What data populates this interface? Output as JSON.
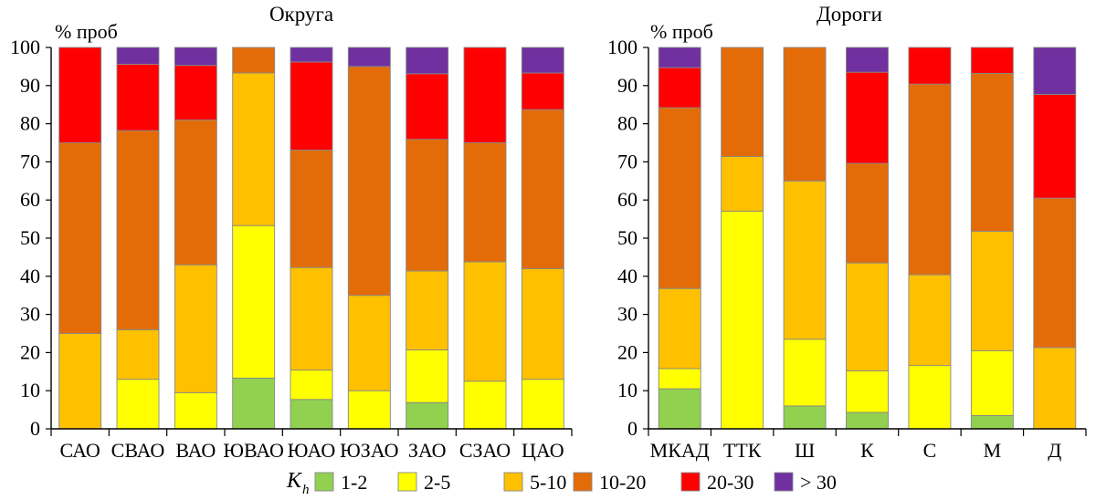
{
  "legend": {
    "symbol": "K",
    "subscript": "h",
    "items": [
      {
        "label": "1-2",
        "color": "#92d050"
      },
      {
        "label": "2-5",
        "color": "#ffff00"
      },
      {
        "label": "5-10",
        "color": "#ffc000"
      },
      {
        "label": "10-20",
        "color": "#e36c09"
      },
      {
        "label": "20-30",
        "color": "#ff0000"
      },
      {
        "label": "> 30",
        "color": "#7030a0"
      }
    ]
  },
  "chart_data": [
    {
      "type": "bar",
      "stacked": true,
      "title": "Округа",
      "ylabel": "% проб",
      "ylim": [
        0,
        100
      ],
      "yticks": [
        "0",
        "10",
        "20",
        "30",
        "40",
        "50",
        "60",
        "70",
        "80",
        "90",
        "100"
      ],
      "categories": [
        "САО",
        "СВАО",
        "ВАО",
        "ЮВАО",
        "ЮАО",
        "ЮЗАО",
        "ЗАО",
        "СЗАО",
        "ЦАО"
      ],
      "series": [
        {
          "name": "1-2",
          "values": [
            0,
            0,
            0,
            13.3,
            7.7,
            0,
            6.9,
            0,
            0
          ]
        },
        {
          "name": "2-5",
          "values": [
            0,
            13,
            9.5,
            40,
            7.7,
            10,
            13.8,
            12.5,
            13
          ]
        },
        {
          "name": "5-10",
          "values": [
            25,
            13,
            33.5,
            40,
            26.9,
            25,
            20.7,
            31.3,
            29
          ]
        },
        {
          "name": "10-20",
          "values": [
            50,
            52.2,
            38,
            6.7,
            30.8,
            60,
            34.5,
            31.2,
            41.7
          ]
        },
        {
          "name": "20-30",
          "values": [
            25,
            17.4,
            14.3,
            0,
            23.1,
            0,
            17.2,
            25,
            9.6
          ]
        },
        {
          "name": "> 30",
          "values": [
            0,
            4.4,
            4.7,
            0,
            3.8,
            5,
            6.9,
            0,
            6.7
          ]
        }
      ]
    },
    {
      "type": "bar",
      "stacked": true,
      "title": "Дороги",
      "ylabel": "% проб",
      "ylim": [
        0,
        100
      ],
      "yticks": [
        "0",
        "10",
        "20",
        "30",
        "40",
        "50",
        "60",
        "70",
        "80",
        "90",
        "100"
      ],
      "categories": [
        "МКАД",
        "ТТК",
        "Ш",
        "К",
        "С",
        "М",
        "Д"
      ],
      "series": [
        {
          "name": "1-2",
          "values": [
            10.5,
            0,
            6,
            4.3,
            0,
            3.5,
            0
          ]
        },
        {
          "name": "2-5",
          "values": [
            5.3,
            57.1,
            17.5,
            10.9,
            16.6,
            17,
            0
          ]
        },
        {
          "name": "5-10",
          "values": [
            21,
            14.3,
            41.5,
            28.3,
            23.8,
            31.3,
            21.3
          ]
        },
        {
          "name": "10-20",
          "values": [
            47.4,
            28.6,
            35,
            26.1,
            50,
            41.4,
            39.2
          ]
        },
        {
          "name": "20-30",
          "values": [
            10.5,
            0,
            0,
            23.9,
            9.6,
            6.8,
            27.2
          ]
        },
        {
          "name": "> 30",
          "values": [
            5.3,
            0,
            0,
            6.5,
            0,
            0,
            12.3
          ]
        }
      ]
    }
  ]
}
